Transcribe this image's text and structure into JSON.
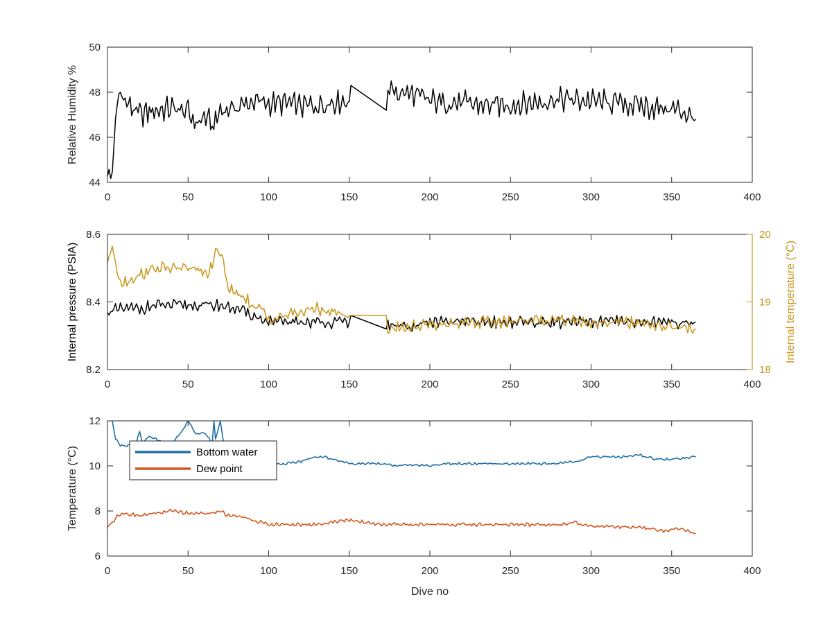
{
  "figure": {
    "colors": {
      "black": "#000000",
      "gold": "#C9951A",
      "blue": "#1F6FA6",
      "orange": "#D2581F",
      "axis": "#262626"
    }
  },
  "chart_data": [
    {
      "type": "line",
      "xlabel": "",
      "ylabel": "Relative Humidity %",
      "xlim": [
        0,
        400
      ],
      "ylim": [
        44,
        50
      ],
      "xticks": [
        "0",
        "50",
        "100",
        "150",
        "200",
        "250",
        "300",
        "350",
        "400"
      ],
      "yticks": [
        "44",
        "46",
        "48",
        "50"
      ],
      "grid": false,
      "series": [
        {
          "color": "#000000",
          "x": [
            0,
            3,
            5,
            8,
            12,
            20,
            30,
            40,
            50,
            55,
            60,
            66,
            70,
            80,
            90,
            100,
            110,
            120,
            130,
            140,
            150,
            151,
            173,
            174,
            180,
            190,
            200,
            220,
            240,
            260,
            280,
            300,
            320,
            340,
            355,
            365
          ],
          "y": [
            44.3,
            44.4,
            46.8,
            48.1,
            47.5,
            47.0,
            47.2,
            47.3,
            47.1,
            46.6,
            46.9,
            46.5,
            47.2,
            47.3,
            47.6,
            47.5,
            47.5,
            47.4,
            47.4,
            47.6,
            47.6,
            48.3,
            47.2,
            48.1,
            48.0,
            47.9,
            47.6,
            47.5,
            47.4,
            47.5,
            47.7,
            47.6,
            47.5,
            47.3,
            47.2,
            46.8
          ]
        }
      ]
    },
    {
      "type": "line",
      "xlabel": "",
      "ylabel": "Internal pressure (PSIA)",
      "ylabel_right": "Internal temperature (°C)",
      "xlim": [
        0,
        400
      ],
      "ylim": [
        8.2,
        8.6
      ],
      "ylim_right": [
        18,
        20
      ],
      "xticks": [
        "0",
        "50",
        "100",
        "150",
        "200",
        "250",
        "300",
        "350",
        "400"
      ],
      "yticks": [
        "8.2",
        "8.4",
        "8.6"
      ],
      "yticks_right": [
        "18",
        "19",
        "20"
      ],
      "grid": false,
      "series": [
        {
          "axis": "left",
          "color": "#000000",
          "x": [
            0,
            10,
            20,
            30,
            40,
            50,
            60,
            70,
            80,
            90,
            100,
            110,
            120,
            130,
            140,
            150,
            151,
            173,
            174,
            190,
            200,
            220,
            250,
            280,
            300,
            320,
            340,
            365
          ],
          "y": [
            8.37,
            8.38,
            8.38,
            8.39,
            8.39,
            8.39,
            8.39,
            8.39,
            8.38,
            8.36,
            8.34,
            8.34,
            8.34,
            8.34,
            8.34,
            8.34,
            8.36,
            8.32,
            8.33,
            8.33,
            8.34,
            8.34,
            8.34,
            8.34,
            8.34,
            8.34,
            8.34,
            8.34
          ]
        },
        {
          "axis": "right",
          "color": "#C9951A",
          "x": [
            0,
            3,
            5,
            8,
            12,
            20,
            30,
            40,
            50,
            55,
            60,
            65,
            68,
            72,
            75,
            80,
            85,
            90,
            95,
            100,
            110,
            120,
            130,
            140,
            150,
            173,
            174,
            190,
            200,
            220,
            250,
            280,
            300,
            320,
            340,
            365
          ],
          "y": [
            19.6,
            19.8,
            19.6,
            19.3,
            19.3,
            19.4,
            19.5,
            19.5,
            19.5,
            19.5,
            19.4,
            19.5,
            19.8,
            19.6,
            19.2,
            19.1,
            19.1,
            18.9,
            18.9,
            18.75,
            18.8,
            18.85,
            18.9,
            18.85,
            18.8,
            18.8,
            18.6,
            18.65,
            18.65,
            18.7,
            18.7,
            18.75,
            18.7,
            18.7,
            18.65,
            18.6
          ]
        }
      ]
    },
    {
      "type": "line",
      "xlabel": "Dive no",
      "ylabel": "Temperature (°C)",
      "xlim": [
        0,
        400
      ],
      "ylim": [
        6,
        12
      ],
      "xticks": [
        "0",
        "50",
        "100",
        "150",
        "200",
        "250",
        "300",
        "350",
        "400"
      ],
      "yticks": [
        "6",
        "8",
        "10",
        "12"
      ],
      "grid": false,
      "legend": "top-left",
      "series": [
        {
          "name": "Bottom water",
          "color": "#1F6FA6",
          "x": [
            0,
            3,
            5,
            8,
            12,
            18,
            20,
            22,
            25,
            30,
            35,
            40,
            45,
            50,
            55,
            60,
            65,
            66,
            67,
            70,
            72,
            75,
            80,
            90,
            100,
            110,
            120,
            128,
            135,
            140,
            150,
            160,
            170,
            180,
            190,
            200,
            210,
            220,
            240,
            260,
            280,
            290,
            300,
            310,
            320,
            330,
            340,
            350,
            365
          ],
          "y": [
            12.0,
            12.0,
            11.2,
            10.9,
            10.9,
            11.1,
            11.5,
            11.0,
            11.3,
            11.2,
            11.0,
            11.0,
            11.4,
            12.0,
            11.4,
            11.5,
            11.0,
            12.0,
            11.2,
            12.0,
            11.0,
            10.6,
            10.4,
            10.2,
            10.1,
            10.1,
            10.2,
            10.4,
            10.4,
            10.3,
            10.1,
            10.1,
            10.1,
            10.0,
            10.05,
            10.0,
            10.1,
            10.1,
            10.1,
            10.1,
            10.1,
            10.2,
            10.4,
            10.4,
            10.4,
            10.5,
            10.3,
            10.3,
            10.4
          ]
        },
        {
          "name": "Dew point",
          "color": "#D2581F",
          "x": [
            0,
            3,
            6,
            10,
            20,
            30,
            40,
            50,
            60,
            65,
            70,
            75,
            80,
            90,
            100,
            110,
            120,
            130,
            140,
            150,
            160,
            170,
            180,
            200,
            220,
            240,
            260,
            280,
            290,
            300,
            320,
            340,
            345,
            355,
            365
          ],
          "y": [
            7.3,
            7.5,
            7.8,
            7.9,
            7.8,
            7.9,
            8.0,
            7.9,
            7.9,
            7.9,
            8.0,
            7.8,
            7.8,
            7.6,
            7.4,
            7.4,
            7.4,
            7.4,
            7.5,
            7.6,
            7.5,
            7.4,
            7.4,
            7.4,
            7.4,
            7.4,
            7.4,
            7.4,
            7.5,
            7.3,
            7.3,
            7.2,
            7.1,
            7.2,
            7.0
          ]
        }
      ]
    }
  ]
}
